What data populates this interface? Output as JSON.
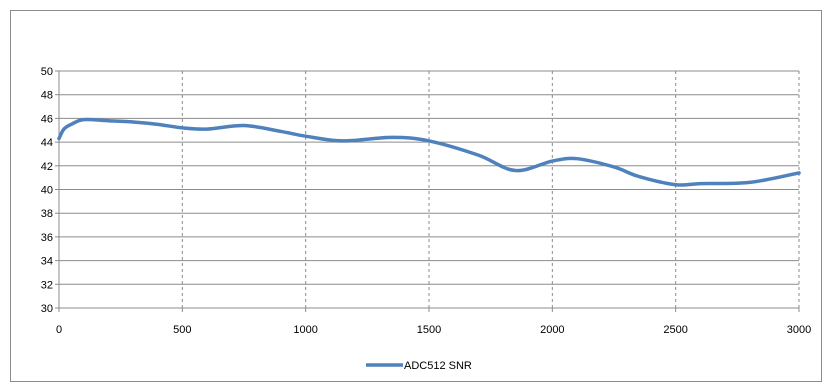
{
  "chart_data": {
    "type": "line",
    "title": "",
    "xlabel": "",
    "ylabel": "",
    "xlim": [
      0,
      3000
    ],
    "ylim": [
      30,
      50
    ],
    "x_ticks": [
      0,
      500,
      1000,
      1500,
      2000,
      2500,
      3000
    ],
    "y_ticks": [
      30,
      32,
      34,
      36,
      38,
      40,
      42,
      44,
      46,
      48,
      50
    ],
    "x_grid": "dashed",
    "y_grid": "solid",
    "legend_position": "bottom",
    "series": [
      {
        "name": "ADC512 SNR",
        "color": "#4f81bd",
        "x": [
          0,
          20,
          50,
          100,
          200,
          300,
          400,
          500,
          600,
          750,
          900,
          1000,
          1150,
          1350,
          1500,
          1700,
          1850,
          2000,
          2100,
          2250,
          2350,
          2500,
          2600,
          2800,
          3000
        ],
        "y": [
          44.3,
          45.1,
          45.5,
          45.9,
          45.8,
          45.7,
          45.5,
          45.2,
          45.1,
          45.4,
          44.9,
          44.5,
          44.1,
          44.4,
          44.1,
          42.9,
          41.6,
          42.4,
          42.6,
          41.9,
          41.1,
          40.4,
          40.5,
          40.6,
          41.4
        ]
      }
    ]
  }
}
